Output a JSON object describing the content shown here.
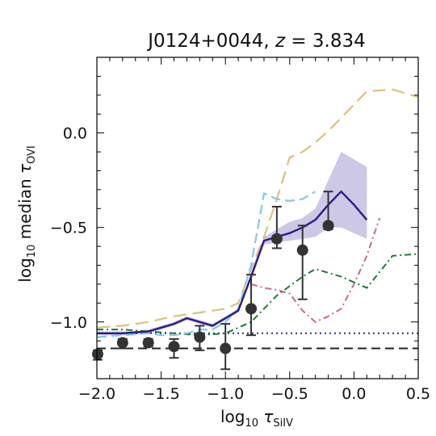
{
  "chart_data": {
    "type": "line",
    "title": "J0124+0044, z = 3.834",
    "title_parts": {
      "name": "J0124+0044, ",
      "var": "z",
      "rest": " = 3.834"
    },
    "xlabel": {
      "prefix": "log",
      "base": "10",
      "sym": "τ",
      "sub": "SiIV"
    },
    "ylabel": {
      "prefix": "log",
      "base": "10",
      "mid": " median ",
      "sym": "τ",
      "sub": "OVI"
    },
    "xlim": [
      -2.0,
      0.5
    ],
    "ylim": [
      -1.3,
      0.4
    ],
    "x_ticks": [
      -2.0,
      -1.5,
      -1.0,
      -0.5,
      0.0,
      0.5
    ],
    "x_tick_labels": [
      "−2.0",
      "−1.5",
      "−1.0",
      "−0.5",
      "0.0",
      "0.5"
    ],
    "y_ticks": [
      -1.0,
      -0.5,
      0.0
    ],
    "y_tick_labels": [
      "−1.0",
      "−0.5",
      "0.0"
    ],
    "x_minor_step": 0.1,
    "y_minor_step": 0.1,
    "grid": false,
    "colors": {
      "main_line": "#2e1a8a",
      "band": "#a49bd0",
      "gold": "#d9c27a",
      "cyan": "#86c8e6",
      "green": "#1e7a36",
      "pink": "#c96a86",
      "dotted": "#2a2aa0",
      "dashed_black": "#222222",
      "points": "#333333"
    },
    "points": {
      "x": [
        -2.0,
        -1.8,
        -1.6,
        -1.4,
        -1.2,
        -1.0,
        -0.8,
        -0.6,
        -0.4,
        -0.2
      ],
      "y": [
        -1.17,
        -1.11,
        -1.11,
        -1.13,
        -1.08,
        -1.14,
        -0.93,
        -0.56,
        -0.62,
        -0.49
      ],
      "err_low": [
        0.03,
        0.03,
        0.02,
        0.06,
        0.07,
        0.11,
        0.14,
        0.05,
        0.26,
        0.02
      ],
      "err_high": [
        0.02,
        0.02,
        0.02,
        0.04,
        0.06,
        0.13,
        0.18,
        0.17,
        0.13,
        0.18
      ]
    },
    "main_line": {
      "x": [
        -2.0,
        -1.8,
        -1.6,
        -1.5,
        -1.4,
        -1.3,
        -1.2,
        -1.1,
        -1.0,
        -0.9,
        -0.8,
        -0.7,
        -0.6,
        -0.5,
        -0.4,
        -0.3,
        -0.2,
        -0.1,
        0.0,
        0.1
      ],
      "y": [
        -1.06,
        -1.06,
        -1.05,
        -1.03,
        -1.01,
        -0.98,
        -1.0,
        -1.02,
        -0.98,
        -0.94,
        -0.76,
        -0.57,
        -0.55,
        -0.53,
        -0.5,
        -0.46,
        -0.38,
        -0.31,
        -0.38,
        -0.46
      ]
    },
    "band": {
      "x": [
        -2.0,
        -1.8,
        -1.6,
        -1.5,
        -1.4,
        -1.3,
        -1.2,
        -1.1,
        -1.0,
        -0.9,
        -0.8,
        -0.7,
        -0.6,
        -0.5,
        -0.4,
        -0.3,
        -0.2,
        -0.1,
        0.0,
        0.1
      ],
      "upper": [
        -1.05,
        -1.05,
        -1.04,
        -1.02,
        -1.0,
        -0.97,
        -0.99,
        -1.01,
        -0.97,
        -0.93,
        -0.74,
        -0.55,
        -0.51,
        -0.47,
        -0.45,
        -0.4,
        -0.25,
        -0.1,
        -0.14,
        -0.18
      ],
      "lower": [
        -1.07,
        -1.07,
        -1.06,
        -1.04,
        -1.02,
        -0.99,
        -1.01,
        -1.03,
        -0.99,
        -0.95,
        -0.78,
        -0.59,
        -0.58,
        -0.57,
        -0.56,
        -0.55,
        -0.5,
        -0.5,
        -0.53,
        -0.56
      ]
    },
    "gold_dashed": {
      "x": [
        -2.0,
        -1.8,
        -1.6,
        -1.4,
        -1.2,
        -1.0,
        -0.9,
        -0.8,
        -0.7,
        -0.6,
        -0.5,
        -0.4,
        -0.3,
        -0.2,
        -0.1,
        0.0,
        0.1,
        0.3,
        0.5
      ],
      "y": [
        -1.03,
        -1.02,
        -1.0,
        -0.97,
        -0.95,
        -0.93,
        -0.9,
        -0.72,
        -0.55,
        -0.35,
        -0.13,
        -0.1,
        -0.05,
        0.01,
        0.08,
        0.15,
        0.22,
        0.23,
        0.19
      ]
    },
    "cyan_dashed": {
      "x": [
        -2.0,
        -1.8,
        -1.6,
        -1.5,
        -1.4,
        -1.3,
        -1.2,
        -1.1,
        -1.0,
        -0.9,
        -0.8,
        -0.7,
        -0.6,
        -0.5,
        -0.4,
        -0.3
      ],
      "y": [
        -1.08,
        -1.07,
        -1.06,
        -1.07,
        -1.07,
        -1.06,
        -1.04,
        -1.04,
        -1.0,
        -0.93,
        -0.7,
        -0.32,
        -0.35,
        -0.36,
        -0.35,
        -0.31
      ]
    },
    "green_dashdot": {
      "x": [
        -2.0,
        -1.8,
        -1.6,
        -1.4,
        -1.2,
        -1.0,
        -0.8,
        -0.6,
        -0.5,
        -0.4,
        -0.3,
        -0.2,
        -0.1,
        0.1,
        0.3,
        0.5
      ],
      "y": [
        -1.04,
        -1.04,
        -1.05,
        -1.06,
        -1.07,
        -1.06,
        -1.0,
        -0.86,
        -0.81,
        -0.76,
        -0.72,
        -0.74,
        -0.76,
        -0.82,
        -0.65,
        -0.64
      ]
    },
    "pink_dashdot": {
      "x": [
        -0.8,
        -0.7,
        -0.6,
        -0.5,
        -0.4,
        -0.3,
        -0.2,
        -0.1,
        0.0,
        0.1,
        0.2
      ],
      "y": [
        -0.8,
        -0.82,
        -0.83,
        -0.85,
        -0.94,
        -1.0,
        -0.97,
        -0.93,
        -0.8,
        -0.65,
        -0.45
      ]
    },
    "dotted_hline": {
      "y": -1.06
    },
    "dashed_hline": {
      "y": -1.14
    }
  }
}
